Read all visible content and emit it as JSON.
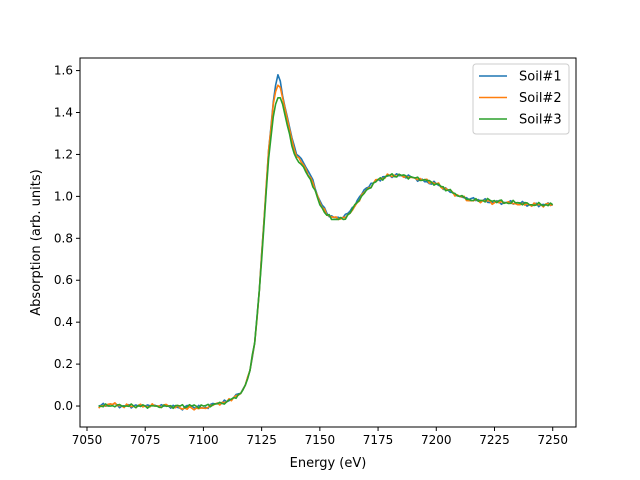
{
  "chart_data": {
    "type": "line",
    "title": "",
    "xlabel": "Energy (eV)",
    "ylabel": "Absorption (arb. units)",
    "xlim": [
      7047,
      7260
    ],
    "ylim": [
      -0.1,
      1.66
    ],
    "xticks": [
      7050,
      7075,
      7100,
      7125,
      7150,
      7175,
      7200,
      7225,
      7250
    ],
    "xtick_labels": [
      "7050",
      "7075",
      "7100",
      "7125",
      "7150",
      "7175",
      "7200",
      "7225",
      "7250"
    ],
    "yticks": [
      0.0,
      0.2,
      0.4,
      0.6,
      0.8,
      1.0,
      1.2,
      1.4,
      1.6
    ],
    "ytick_labels": [
      "0.0",
      "0.2",
      "0.4",
      "0.6",
      "0.8",
      "1.0",
      "1.2",
      "1.4",
      "1.6"
    ],
    "grid": false,
    "legend_position": "upper-right",
    "series": [
      {
        "name": "Soil#1",
        "color": "#1f77b4",
        "x": [
          7055,
          7060,
          7065,
          7070,
          7075,
          7080,
          7085,
          7090,
          7095,
          7100,
          7105,
          7110,
          7113,
          7116,
          7118,
          7120,
          7122,
          7124,
          7126,
          7128,
          7130,
          7131,
          7132,
          7133,
          7134,
          7136,
          7138,
          7140,
          7143,
          7146,
          7150,
          7153,
          7156,
          7158,
          7160,
          7163,
          7166,
          7170,
          7175,
          7180,
          7185,
          7190,
          7195,
          7200,
          7205,
          7210,
          7215,
          7220,
          7225,
          7230,
          7235,
          7240,
          7245,
          7250
        ],
        "y": [
          0.0,
          0.01,
          0.0,
          0.0,
          0.0,
          0.0,
          0.0,
          -0.01,
          0.0,
          -0.01,
          0.01,
          0.02,
          0.04,
          0.06,
          0.1,
          0.17,
          0.3,
          0.55,
          0.88,
          1.22,
          1.45,
          1.53,
          1.58,
          1.55,
          1.48,
          1.38,
          1.28,
          1.2,
          1.16,
          1.1,
          0.98,
          0.92,
          0.9,
          0.9,
          0.9,
          0.93,
          0.98,
          1.04,
          1.08,
          1.1,
          1.1,
          1.09,
          1.07,
          1.06,
          1.03,
          1.0,
          0.99,
          0.98,
          0.97,
          0.97,
          0.97,
          0.96,
          0.96,
          0.96
        ]
      },
      {
        "name": "Soil#2",
        "color": "#ff7f0e",
        "x": [
          7055,
          7060,
          7065,
          7070,
          7075,
          7080,
          7085,
          7090,
          7095,
          7100,
          7105,
          7110,
          7113,
          7116,
          7118,
          7120,
          7122,
          7124,
          7126,
          7128,
          7130,
          7131,
          7132,
          7133,
          7134,
          7136,
          7138,
          7140,
          7143,
          7146,
          7150,
          7153,
          7156,
          7158,
          7160,
          7163,
          7166,
          7170,
          7175,
          7180,
          7185,
          7190,
          7195,
          7200,
          7205,
          7210,
          7215,
          7220,
          7225,
          7230,
          7235,
          7240,
          7245,
          7250
        ],
        "y": [
          -0.01,
          0.01,
          0.0,
          0.0,
          0.0,
          0.0,
          0.0,
          -0.01,
          -0.01,
          -0.01,
          0.01,
          0.02,
          0.04,
          0.06,
          0.1,
          0.17,
          0.3,
          0.55,
          0.88,
          1.22,
          1.44,
          1.5,
          1.53,
          1.52,
          1.47,
          1.37,
          1.27,
          1.19,
          1.15,
          1.09,
          0.97,
          0.91,
          0.9,
          0.89,
          0.9,
          0.92,
          0.97,
          1.03,
          1.08,
          1.1,
          1.1,
          1.09,
          1.08,
          1.06,
          1.03,
          1.0,
          0.98,
          0.98,
          0.97,
          0.97,
          0.96,
          0.96,
          0.96,
          0.96
        ]
      },
      {
        "name": "Soil#3",
        "color": "#2ca02c",
        "x": [
          7055,
          7060,
          7065,
          7070,
          7075,
          7080,
          7085,
          7090,
          7095,
          7100,
          7105,
          7110,
          7113,
          7116,
          7118,
          7120,
          7122,
          7124,
          7126,
          7128,
          7130,
          7131,
          7132,
          7133,
          7134,
          7136,
          7138,
          7140,
          7143,
          7146,
          7150,
          7153,
          7156,
          7158,
          7160,
          7163,
          7166,
          7170,
          7175,
          7180,
          7185,
          7190,
          7195,
          7200,
          7205,
          7210,
          7215,
          7220,
          7225,
          7230,
          7235,
          7240,
          7245,
          7250
        ],
        "y": [
          0.0,
          0.0,
          0.0,
          0.0,
          0.0,
          0.0,
          0.0,
          0.0,
          0.0,
          0.0,
          0.01,
          0.02,
          0.04,
          0.06,
          0.1,
          0.17,
          0.3,
          0.55,
          0.86,
          1.18,
          1.38,
          1.44,
          1.47,
          1.47,
          1.44,
          1.34,
          1.24,
          1.18,
          1.14,
          1.08,
          0.96,
          0.91,
          0.89,
          0.89,
          0.89,
          0.92,
          0.97,
          1.03,
          1.08,
          1.1,
          1.1,
          1.09,
          1.08,
          1.06,
          1.03,
          1.0,
          0.98,
          0.98,
          0.98,
          0.97,
          0.97,
          0.96,
          0.96,
          0.96
        ]
      }
    ]
  }
}
